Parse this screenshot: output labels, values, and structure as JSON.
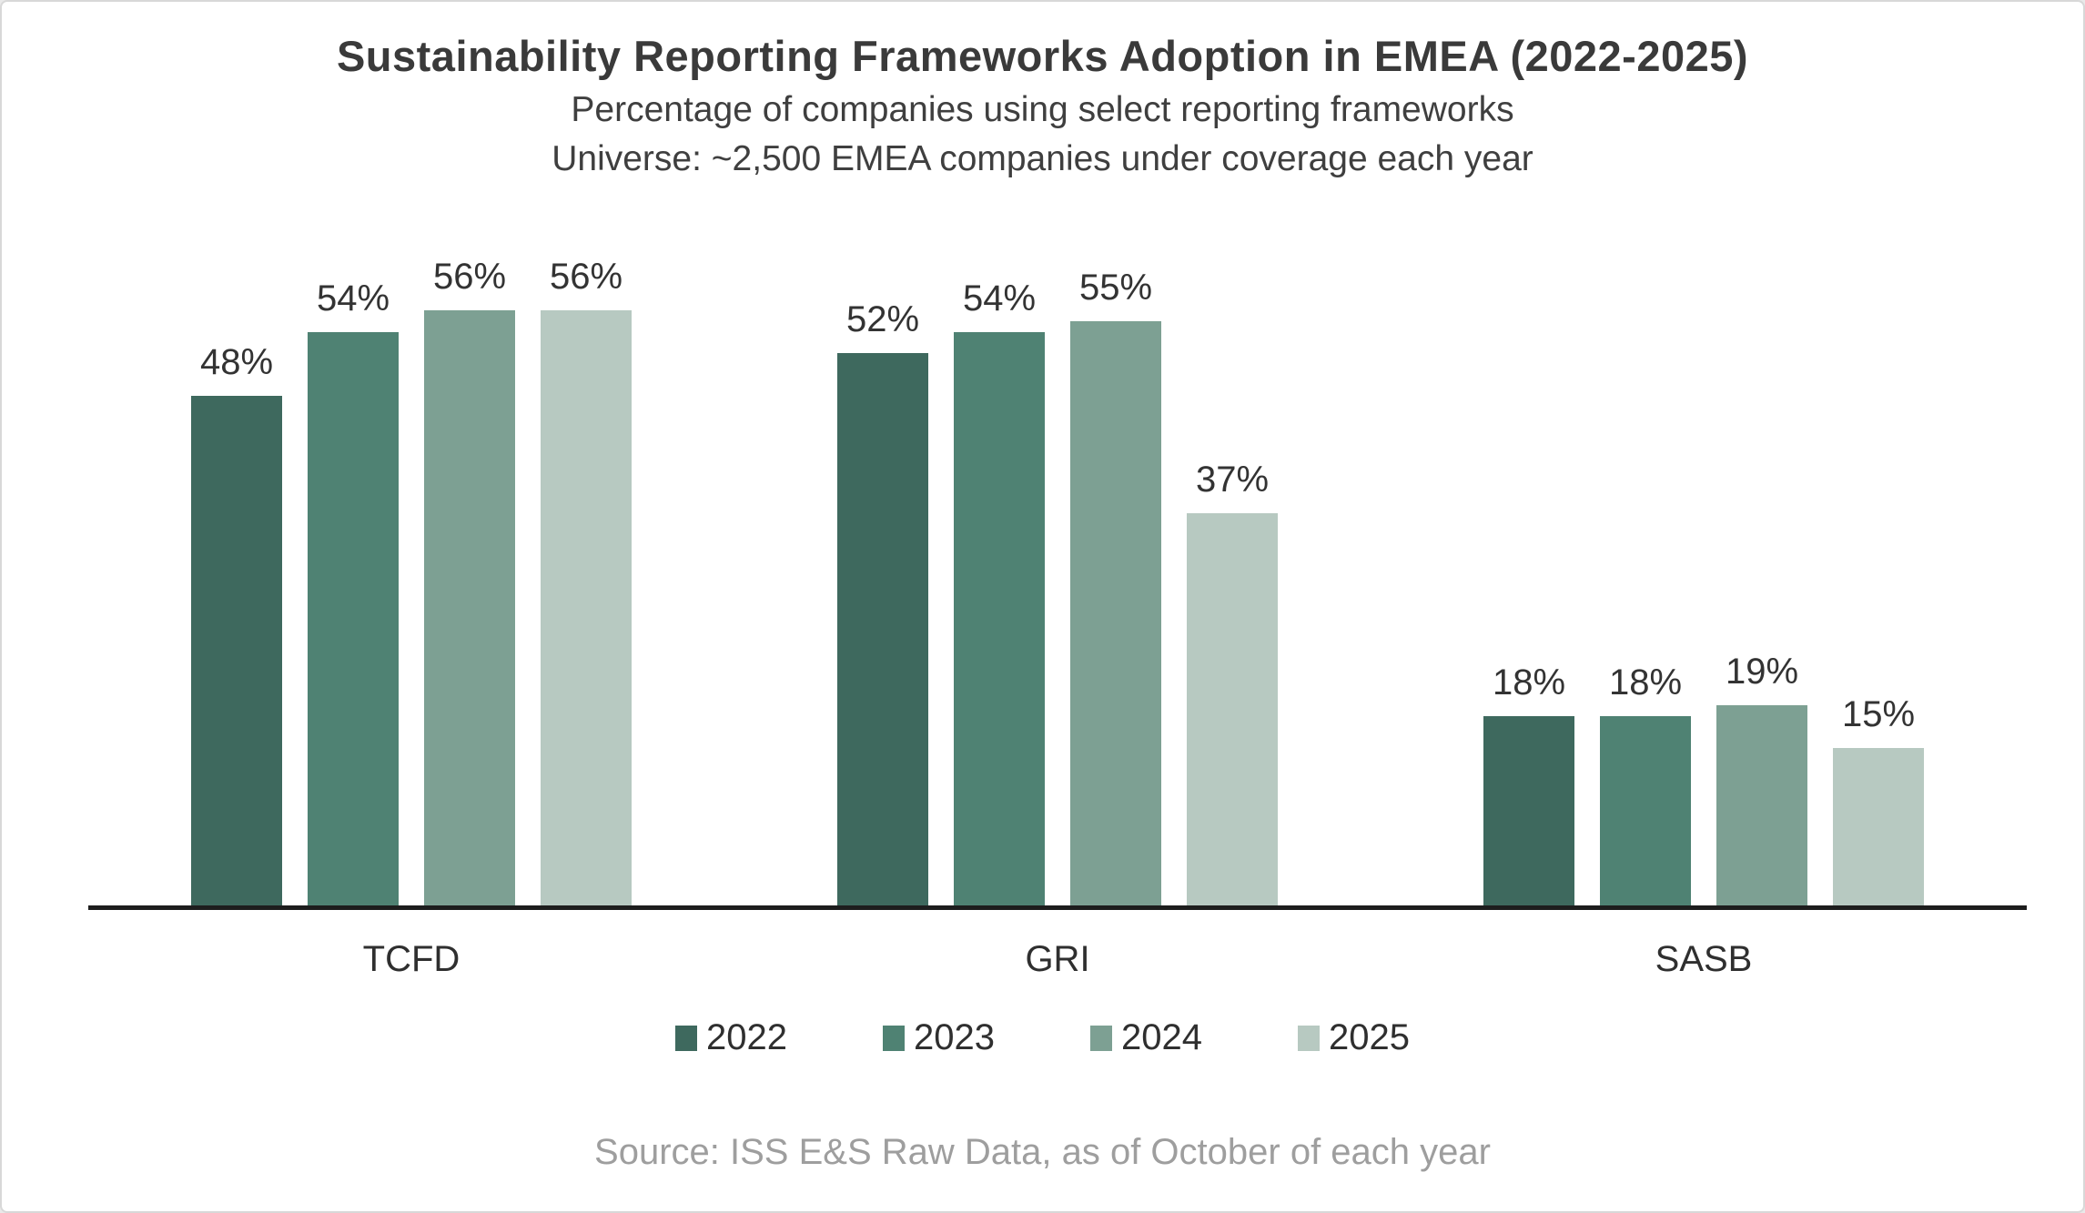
{
  "page": {
    "title": "Sustainability Reporting Frameworks Adoption in EMEA (2022-2025)",
    "subtitle_line1": "Percentage of companies using select reporting frameworks",
    "subtitle_line2": "Universe: ~2,500 EMEA companies under coverage each year",
    "source": "Source: ISS E&S Raw Data, as of October of each year"
  },
  "chart_data": {
    "type": "bar",
    "title": "Sustainability Reporting Frameworks Adoption in EMEA (2022-2025)",
    "subtitle": "Percentage of companies using select reporting frameworks",
    "note": "Universe: ~2,500 EMEA companies under coverage each year",
    "categories": [
      "TCFD",
      "GRI",
      "SASB"
    ],
    "series": [
      {
        "name": "2022",
        "color": "#3E695E",
        "values": [
          48,
          52,
          18
        ]
      },
      {
        "name": "2023",
        "color": "#4F8273",
        "values": [
          54,
          54,
          18
        ]
      },
      {
        "name": "2024",
        "color": "#7DA093",
        "values": [
          56,
          55,
          19
        ]
      },
      {
        "name": "2025",
        "color": "#B7C9C1",
        "values": [
          56,
          37,
          15
        ]
      }
    ],
    "value_suffix": "%",
    "data_labels": true,
    "ylim": [
      0,
      60
    ],
    "y_axis_visible": false,
    "grid": false,
    "legend_position": "bottom",
    "source": "Source: ISS E&S Raw Data, as of October of each year",
    "colors": {
      "axis_line": "#1D1D1D",
      "value_label_text": "#333333",
      "source_text": "#9E9E9E"
    }
  }
}
